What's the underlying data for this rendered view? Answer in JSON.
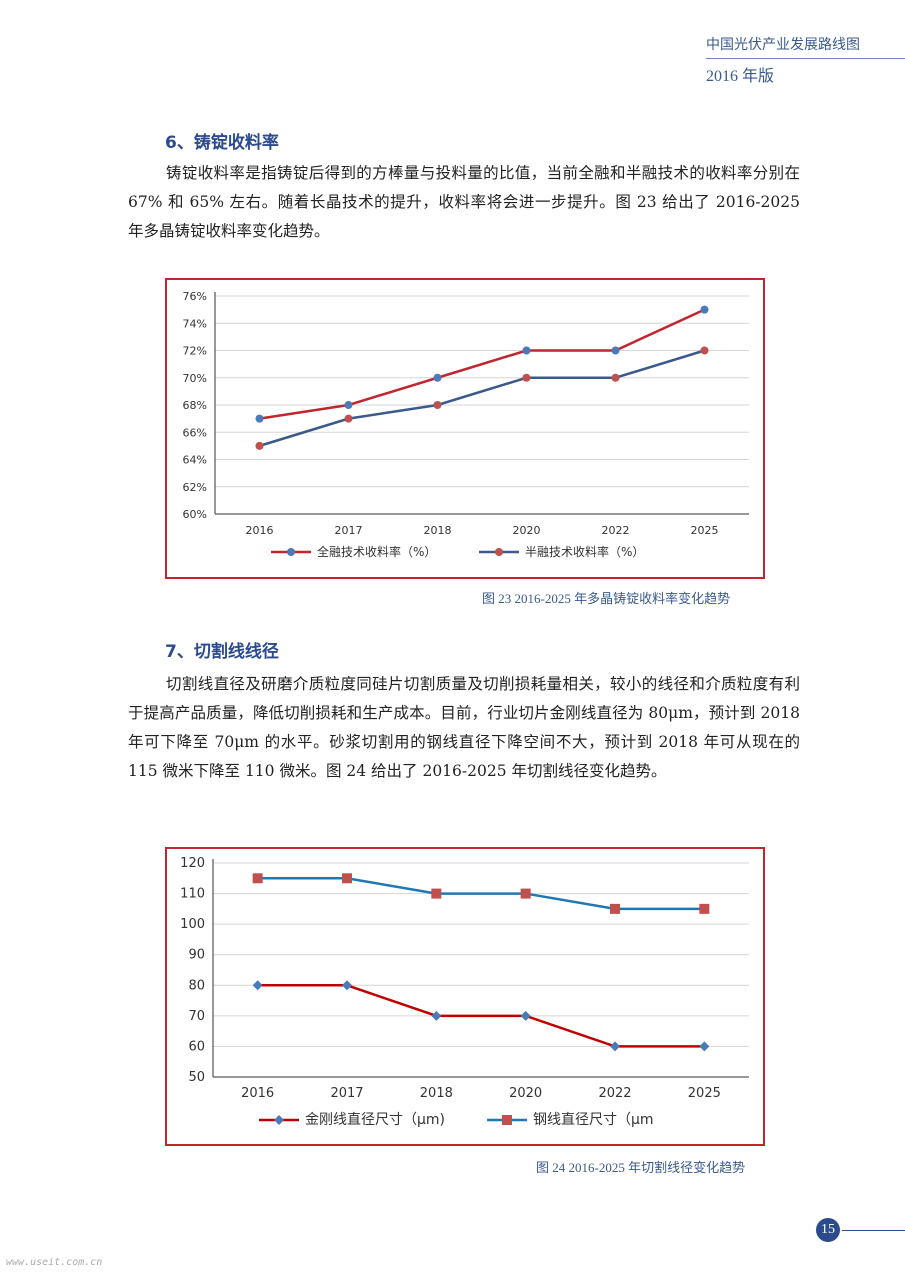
{
  "header": {
    "title": "中国光伏产业发展路线图",
    "year": "2016 年版"
  },
  "section6": {
    "heading": "6、铸锭收料率",
    "paragraph": "铸锭收料率是指铸锭后得到的方棒量与投料量的比值，当前全融和半融技术的收料率分别在 67% 和 65% 左右。随着长晶技术的提升，收料率将会进一步提升。图 23 给出了 2016-2025 年多晶铸锭收料率变化趋势。"
  },
  "figure23_caption": "图 23 2016-2025 年多晶铸锭收料率变化趋势",
  "section7": {
    "heading": "7、切割线线径",
    "paragraph": "切割线直径及研磨介质粒度同硅片切割质量及切削损耗量相关，较小的线径和介质粒度有利于提高产品质量，降低切削损耗和生产成本。目前，行业切片金刚线直径为 80μm，预计到 2018 年可下降至 70μm 的水平。砂浆切割用的钢线直径下降空间不大，预计到 2018 年可从现在的 115 微米下降至 110 微米。图 24 给出了 2016-2025 年切割线径变化趋势。"
  },
  "figure24_caption": "图 24 2016-2025 年切割线径变化趋势",
  "page_number": "15",
  "watermark": "www.useit.com.cn",
  "chart_data": [
    {
      "type": "line",
      "categories": [
        "2016",
        "2017",
        "2018",
        "2020",
        "2022",
        "2025"
      ],
      "series": [
        {
          "name": "全融技术收料率（%）",
          "values": [
            67,
            68,
            70,
            72,
            72,
            75
          ],
          "line_color": "#c0262e",
          "marker_color": "#4a7ab8",
          "marker": "circle"
        },
        {
          "name": "半融技术收料率（%）",
          "values": [
            65,
            67,
            68,
            70,
            70,
            72
          ],
          "line_color": "#3a5a8c",
          "marker_color": "#c0504d",
          "marker": "circle"
        }
      ],
      "ylim": [
        60,
        76
      ],
      "yticks": [
        "60%",
        "62%",
        "64%",
        "66%",
        "68%",
        "70%",
        "72%",
        "74%",
        "76%"
      ],
      "grid": true,
      "legend": "bottom"
    },
    {
      "type": "line",
      "categories": [
        "2016",
        "2017",
        "2018",
        "2020",
        "2022",
        "2025"
      ],
      "series": [
        {
          "name": "金刚线直径尺寸（μm)",
          "values": [
            80,
            80,
            70,
            70,
            60,
            60
          ],
          "line_color": "#c00000",
          "marker_color": "#4a7ab8",
          "marker": "diamond"
        },
        {
          "name": "钢线直径尺寸（μm",
          "values": [
            115,
            115,
            110,
            110,
            105,
            105
          ],
          "line_color": "#1f77b4",
          "marker_color": "#c0504d",
          "marker": "square"
        }
      ],
      "ylim": [
        50,
        120
      ],
      "yticks": [
        "50",
        "60",
        "70",
        "80",
        "90",
        "100",
        "110",
        "120"
      ],
      "grid": true,
      "legend": "bottom"
    }
  ]
}
